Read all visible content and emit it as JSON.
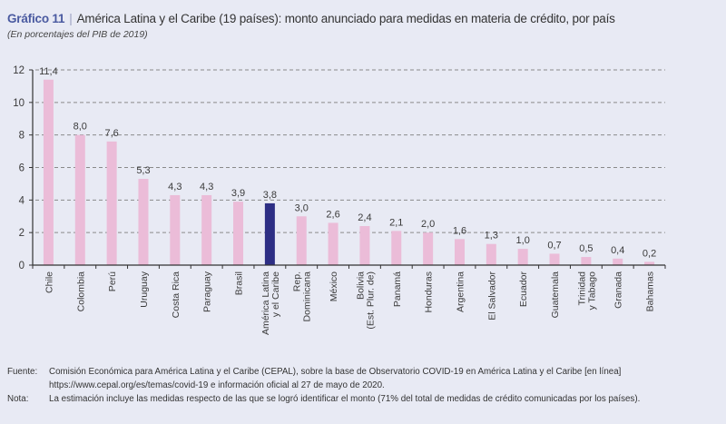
{
  "header": {
    "prefix": "Gráfico 11",
    "separator": "|",
    "title": "América Latina y el Caribe (19 países): monto anunciado para medidas en materia de crédito, por país",
    "subtitle": "(En porcentajes del PIB de 2019)"
  },
  "colors": {
    "bar": "#ebbcd8",
    "highlight_bar": "#2d2e84",
    "axis": "#333333",
    "grid": "#8a8a8a"
  },
  "chart_data": {
    "type": "bar",
    "title": "América Latina y el Caribe (19 países): monto anunciado para medidas en materia de crédito, por país",
    "subtitle": "(En porcentajes del PIB de 2019)",
    "xlabel": "",
    "ylabel": "",
    "ylim": [
      0,
      12
    ],
    "yticks": [
      0,
      2,
      4,
      6,
      8,
      10,
      12
    ],
    "grid": true,
    "grid_style": "dashed horizontal",
    "legend": "none",
    "categories": [
      [
        "Chile"
      ],
      [
        "Colombia"
      ],
      [
        "Perú"
      ],
      [
        "Uruguay"
      ],
      [
        "Costa Rica"
      ],
      [
        "Paraguay"
      ],
      [
        "Brasil"
      ],
      [
        "América Latina",
        "y el Caribe"
      ],
      [
        "Rep.",
        "Dominicana"
      ],
      [
        "México"
      ],
      [
        "Bolivia",
        "(Est. Plur. de)"
      ],
      [
        "Panamá"
      ],
      [
        "Honduras"
      ],
      [
        "Argentina"
      ],
      [
        "El Salvador"
      ],
      [
        "Ecuador"
      ],
      [
        "Guatemala"
      ],
      [
        "Trinidad",
        "y Tabago"
      ],
      [
        "Granada"
      ],
      [
        "Bahamas"
      ]
    ],
    "values": [
      11.4,
      8.0,
      7.6,
      5.3,
      4.3,
      4.3,
      3.9,
      3.8,
      3.0,
      2.6,
      2.4,
      2.1,
      2.0,
      1.6,
      1.3,
      1.0,
      0.7,
      0.5,
      0.4,
      0.2
    ],
    "value_labels": [
      "11,4",
      "8,0",
      "7,6",
      "5,3",
      "4,3",
      "4,3",
      "3,9",
      "3,8",
      "3,0",
      "2,6",
      "2,4",
      "2,1",
      "2,0",
      "1,6",
      "1,3",
      "1,0",
      "0,7",
      "0,5",
      "0,4",
      "0,2"
    ],
    "highlight_index": 7
  },
  "footer": {
    "source_label": "Fuente:",
    "source_line1": "Comisión Económica para América Latina y el Caribe (CEPAL), sobre la base de Observatorio COVID-19 en América Latina y el Caribe [en línea]",
    "source_line2": "https://www.cepal.org/es/temas/covid-19 e información oficial al 27 de mayo de 2020.",
    "note_label": "Nota:",
    "note_text": "La estimación incluye las medidas respecto de las que se logró identificar el monto (71% del total de medidas de crédito comunicadas por los países)."
  }
}
